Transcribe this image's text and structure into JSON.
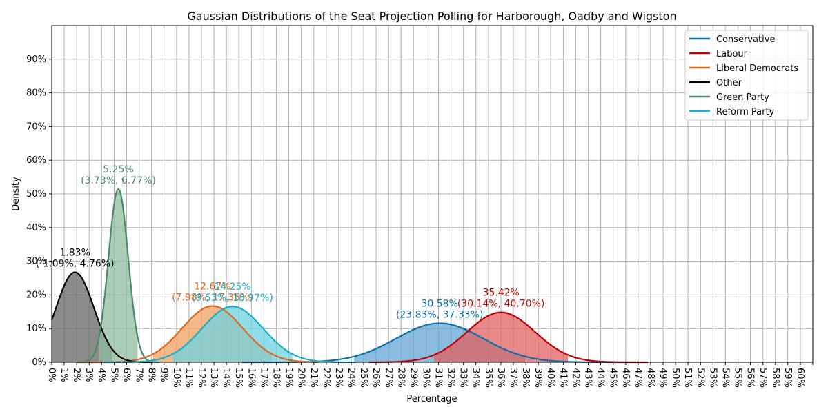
{
  "chart_data": {
    "type": "line",
    "title": "Gaussian Distributions of the Seat Projection Polling for Harborough, Oadby and Wigston",
    "xlabel": "Percentage",
    "ylabel": "Density",
    "xlim": [
      0,
      60
    ],
    "ylim": [
      0,
      1.0
    ],
    "x_ticks": [
      "0%",
      "1%",
      "2%",
      "3%",
      "4%",
      "5%",
      "6%",
      "7%",
      "8%",
      "9%",
      "10%",
      "11%",
      "12%",
      "13%",
      "14%",
      "15%",
      "16%",
      "17%",
      "18%",
      "19%",
      "20%",
      "21%",
      "22%",
      "23%",
      "24%",
      "25%",
      "26%",
      "27%",
      "28%",
      "29%",
      "30%",
      "31%",
      "32%",
      "33%",
      "34%",
      "35%",
      "36%",
      "37%",
      "38%",
      "39%",
      "40%",
      "41%",
      "42%",
      "43%",
      "44%",
      "45%",
      "46%",
      "47%",
      "48%",
      "49%",
      "50%",
      "51%",
      "52%",
      "53%",
      "54%",
      "55%",
      "56%",
      "57%",
      "58%",
      "59%",
      "60%"
    ],
    "x_tick_values": [
      0,
      0.98,
      1.97,
      2.95,
      3.93,
      4.92,
      5.9,
      6.89,
      7.87,
      8.85,
      9.84,
      10.82,
      11.8,
      12.79,
      13.77,
      14.75,
      15.74,
      16.72,
      17.7,
      18.69,
      19.67,
      20.66,
      21.64,
      22.62,
      23.61,
      24.59,
      25.57,
      26.56,
      27.54,
      28.52,
      29.51,
      30.49,
      31.48,
      32.46,
      33.44,
      34.43,
      35.41,
      36.39,
      37.38,
      38.36,
      39.34,
      40.33,
      41.31,
      42.3,
      43.28,
      44.26,
      45.25,
      46.23,
      47.21,
      48.2,
      49.18,
      50.16,
      51.15,
      52.13,
      53.11,
      54.1,
      55.08,
      56.07,
      57.05,
      58.03,
      59.02,
      60
    ],
    "y_ticks": [
      "0%",
      "10%",
      "20%",
      "30%",
      "40%",
      "50%",
      "60%",
      "70%",
      "80%",
      "90%"
    ],
    "y_tick_values": [
      0,
      0.1,
      0.2,
      0.3,
      0.4,
      0.5,
      0.6,
      0.7,
      0.8,
      0.9
    ],
    "grid": true,
    "legend_position": "top-right",
    "series": [
      {
        "name": "Conservative",
        "mean": 30.58,
        "ci_low": 23.83,
        "ci_high": 37.33,
        "color": "#1f77b4",
        "line_color": "#0a6fa8",
        "fill_color": "#63a6d6",
        "label": "30.58%",
        "ci_label": "(23.83%, 37.33%)",
        "range": [
          15,
          46
        ]
      },
      {
        "name": "Labour",
        "mean": 35.42,
        "ci_low": 30.14,
        "ci_high": 40.7,
        "color": "#c00000",
        "line_color": "#c00000",
        "fill_color": "#e06060",
        "label": "35.42%",
        "ci_label": "(30.14%, 40.70%)",
        "range": [
          25,
          47
        ]
      },
      {
        "name": "Liberal Democrats",
        "mean": 12.67,
        "ci_low": 7.98,
        "ci_high": 17.35,
        "color": "#e1661b",
        "line_color": "#e1661b",
        "fill_color": "#f0a060",
        "label": "12.67%",
        "ci_label": "(7.98%, 17.35%)",
        "range": [
          2,
          21
        ]
      },
      {
        "name": "Other",
        "mean": 1.83,
        "ci_low": -1.09,
        "ci_high": 4.76,
        "color": "#000000",
        "line_color": "#000000",
        "fill_color": "#666666",
        "label": "1.83%",
        "ci_label": "(-1.09%, 4.76%)",
        "range": [
          0,
          8
        ]
      },
      {
        "name": "Green Party",
        "mean": 5.25,
        "ci_low": 3.73,
        "ci_high": 6.77,
        "color": "#4a8a68",
        "line_color": "#4a8a68",
        "fill_color": "#8fbc9f",
        "label": "5.25%",
        "ci_label": "(3.73%, 6.77%)",
        "range": [
          2,
          8.5
        ]
      },
      {
        "name": "Reform Party",
        "mean": 14.25,
        "ci_low": 9.53,
        "ci_high": 18.97,
        "color": "#17becf",
        "line_color": "#1aafc8",
        "fill_color": "#6dd3e0",
        "label": "14.25%",
        "ci_label": "(9.53%, 18.97%)",
        "range": [
          4,
          24
        ]
      }
    ]
  }
}
